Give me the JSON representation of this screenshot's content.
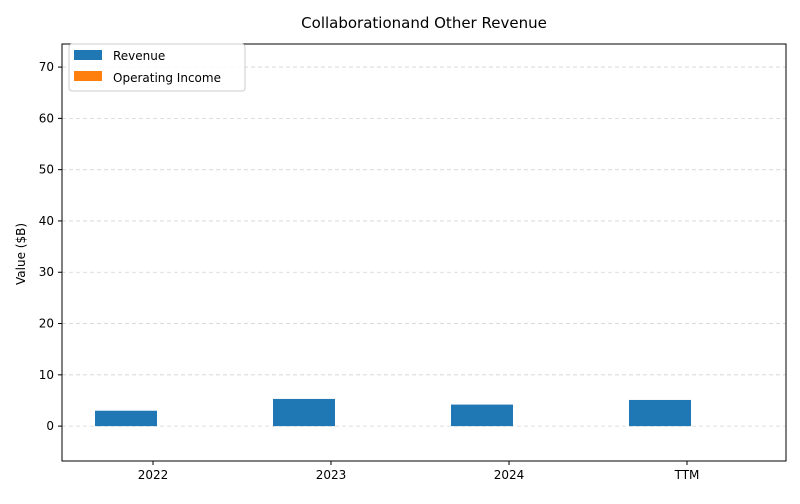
{
  "chart_data": {
    "type": "bar",
    "title": "Collaborationand Other Revenue",
    "xlabel": "",
    "ylabel": "Value ($B)",
    "categories": [
      "2022",
      "2023",
      "2024",
      "TTM"
    ],
    "series": [
      {
        "name": "Revenue",
        "values": [
          3.0,
          5.3,
          4.2,
          5.1
        ],
        "color": "#1f77b4"
      },
      {
        "name": "Operating Income",
        "values": [
          0,
          0,
          0,
          0
        ],
        "color": "#ff7f0e"
      }
    ],
    "ylim": [
      -6.8,
      74.5
    ],
    "yticks": [
      0,
      10,
      20,
      30,
      40,
      50,
      60,
      70
    ],
    "grid": true,
    "grid_axis": "y",
    "legend_position": "top-left"
  }
}
